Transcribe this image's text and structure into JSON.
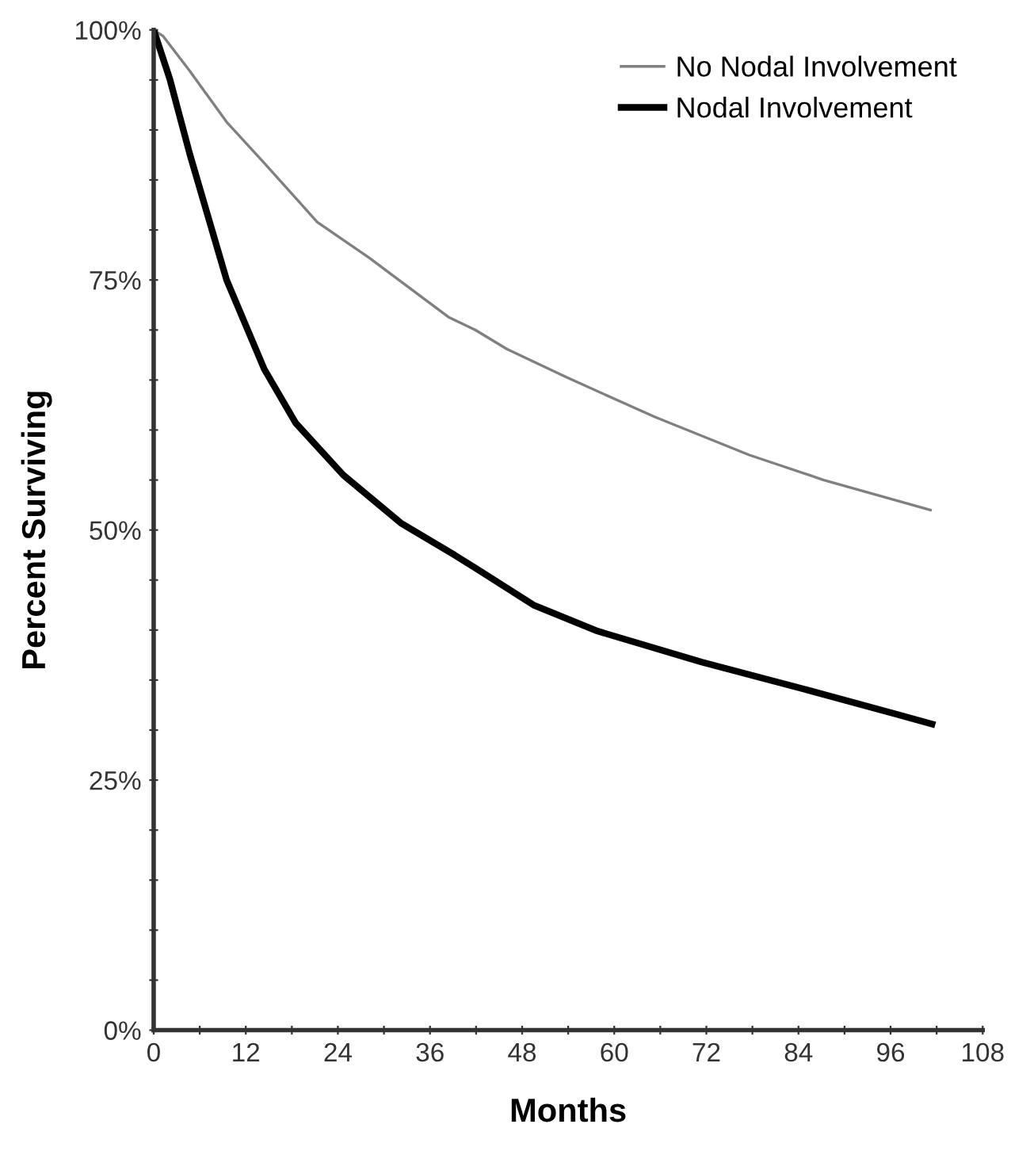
{
  "chart_data": {
    "type": "line",
    "xlabel": "Months",
    "ylabel": "Percent Surviving",
    "xlim": [
      0,
      108
    ],
    "ylim": [
      0,
      100
    ],
    "xticks": [
      0,
      {
        "value": 6,
        "label": null
      },
      12,
      {
        "value": 18,
        "label": null
      },
      24,
      {
        "value": 30,
        "label": null
      },
      36,
      {
        "value": 42,
        "label": null
      },
      48,
      {
        "value": 54,
        "label": null
      },
      60,
      {
        "value": 66,
        "label": null
      },
      72,
      {
        "value": 78,
        "label": null
      },
      84,
      {
        "value": 90,
        "label": null
      },
      96,
      {
        "value": 102,
        "label": null
      },
      108
    ],
    "yticks": [
      {
        "value": 0,
        "label": "0%"
      },
      {
        "value": 5,
        "label": null
      },
      {
        "value": 10,
        "label": null
      },
      {
        "value": 15,
        "label": null
      },
      {
        "value": 20,
        "label": null
      },
      {
        "value": 25,
        "label": "25%"
      },
      {
        "value": 30,
        "label": null
      },
      {
        "value": 35,
        "label": null
      },
      {
        "value": 40,
        "label": null
      },
      {
        "value": 45,
        "label": null
      },
      {
        "value": 50,
        "label": "50%"
      },
      {
        "value": 55,
        "label": null
      },
      {
        "value": 60,
        "label": null
      },
      {
        "value": 65,
        "label": null
      },
      {
        "value": 70,
        "label": null
      },
      {
        "value": 75,
        "label": "75%"
      },
      {
        "value": 80,
        "label": null
      },
      {
        "value": 85,
        "label": null
      },
      {
        "value": 90,
        "label": null
      },
      {
        "value": 95,
        "label": null
      },
      {
        "value": 100,
        "label": "100%"
      }
    ],
    "grid": false,
    "legend": "top right",
    "marker": "none",
    "line_style": "solid",
    "series": [
      {
        "name": "No Nodal Involvement",
        "color": "#808080",
        "x": [
          0,
          1.2,
          4.7,
          9.5,
          14.4,
          21.3,
          28.1,
          38.4,
          41.9,
          46,
          53.7,
          65.3,
          77.6,
          87.3,
          101.2
        ],
        "values": [
          100,
          99.4,
          95.9,
          90.8,
          86.7,
          80.8,
          77.2,
          71.3,
          70.0,
          68.1,
          65.3,
          61.3,
          57.5,
          55.0,
          52.0
        ]
      },
      {
        "name": "Nodal Involvement",
        "color": "#000000",
        "x": [
          0,
          2.1,
          4.7,
          9.5,
          14.4,
          18.5,
          24.7,
          32.2,
          39.2,
          41.9,
          49.5,
          57.8,
          71.4,
          84.7,
          96.2,
          101.4
        ],
        "values": [
          100,
          95.1,
          87.6,
          75.0,
          66.1,
          60.7,
          55.5,
          50.7,
          47.5,
          46.2,
          42.5,
          39.9,
          36.8,
          34.1,
          31.7,
          30.6
        ]
      }
    ]
  }
}
